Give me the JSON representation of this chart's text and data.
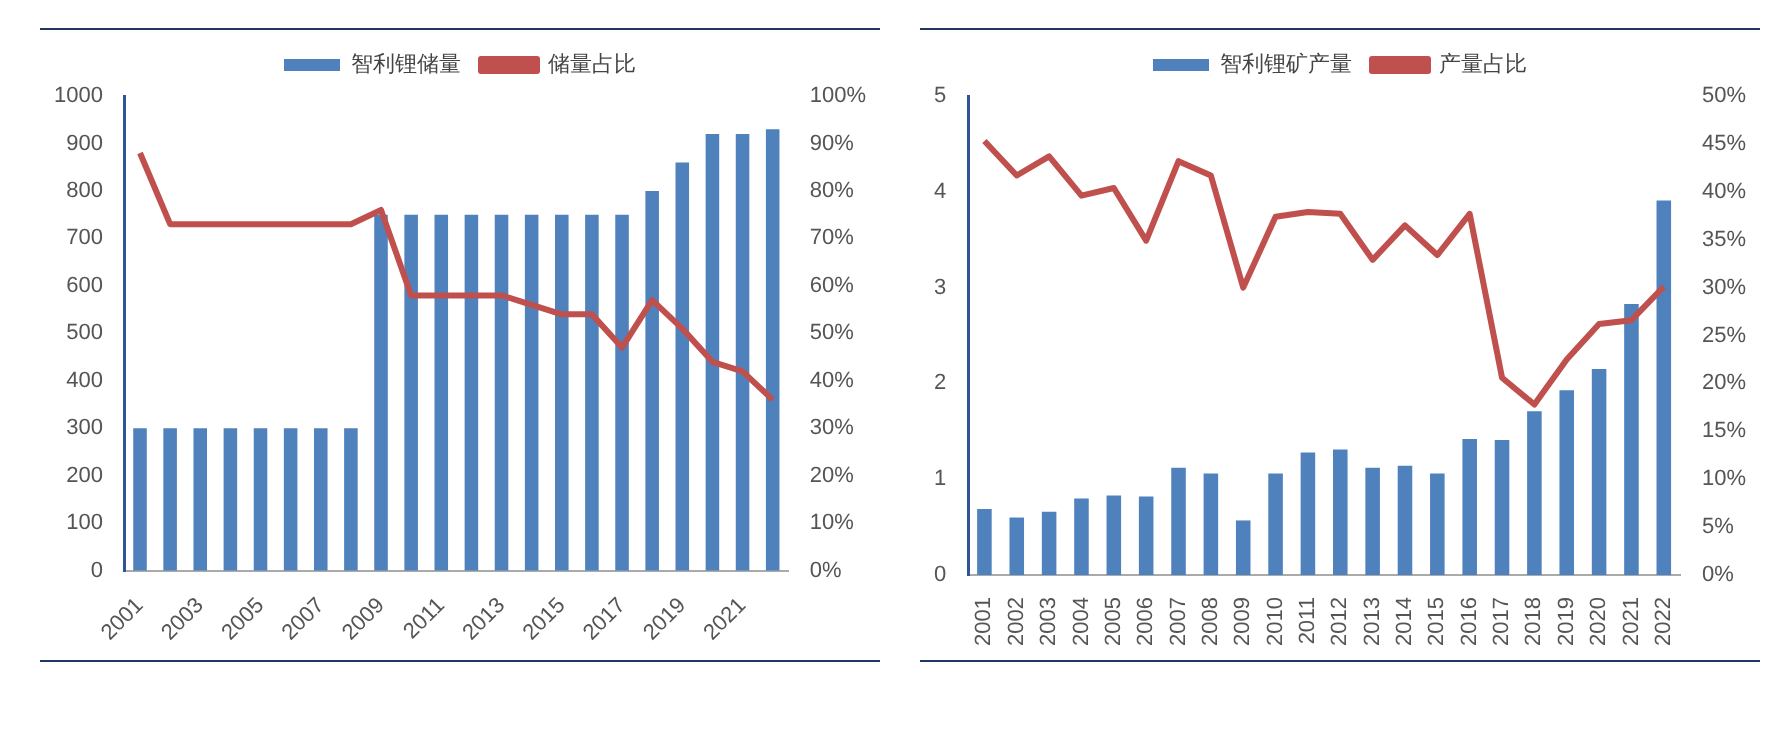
{
  "chart_data": [
    {
      "type": "bar",
      "categories": [
        "2001",
        null,
        "2003",
        null,
        "2005",
        null,
        "2007",
        null,
        "2009",
        null,
        "2011",
        null,
        "2013",
        null,
        "2015",
        null,
        "2017",
        null,
        "2019",
        null,
        "2021",
        null
      ],
      "series": [
        {
          "name": "智利锂储量",
          "color": "#4f81bd",
          "values": [
            300,
            300,
            300,
            300,
            300,
            300,
            300,
            300,
            750,
            750,
            750,
            750,
            750,
            750,
            750,
            750,
            750,
            800,
            860,
            920,
            920,
            930
          ]
        },
        {
          "name": "储量占比",
          "type": "line",
          "axis": "y2",
          "color": "#c0504d",
          "values": [
            88,
            73,
            73,
            73,
            73,
            73,
            73,
            73,
            76,
            58,
            58,
            58,
            58,
            56,
            54,
            54,
            47,
            57,
            51,
            44,
            42,
            36
          ]
        }
      ],
      "ylim": [
        0,
        1000
      ],
      "yticks": [
        0,
        100,
        200,
        300,
        400,
        500,
        600,
        700,
        800,
        900,
        1000
      ],
      "y2lim": [
        0,
        100
      ],
      "y2ticks": [
        {
          "value": 0,
          "label": "0%"
        },
        {
          "value": 10,
          "label": "10%"
        },
        {
          "value": 20,
          "label": "20%"
        },
        {
          "value": 30,
          "label": "30%"
        },
        {
          "value": 40,
          "label": "40%"
        },
        {
          "value": 50,
          "label": "50%"
        },
        {
          "value": 60,
          "label": "60%"
        },
        {
          "value": 70,
          "label": "70%"
        },
        {
          "value": 80,
          "label": "80%"
        },
        {
          "value": 90,
          "label": "90%"
        },
        {
          "value": 100,
          "label": "100%"
        }
      ],
      "legend": "top",
      "grid": false,
      "marker": "none",
      "line_style": "solid"
    },
    {
      "type": "bar",
      "categories": [
        "2001",
        "2002",
        "2003",
        "2004",
        "2005",
        "2006",
        "2007",
        "2008",
        "2009",
        "2010",
        "2011",
        "2012",
        "2013",
        "2014",
        "2015",
        "2016",
        "2017",
        "2018",
        "2019",
        "2020",
        "2021",
        "2022"
      ],
      "series": [
        {
          "name": "智利锂矿产量",
          "color": "#4f81bd",
          "values": [
            0.69,
            0.6,
            0.66,
            0.8,
            0.83,
            0.82,
            1.12,
            1.06,
            0.57,
            1.06,
            1.28,
            1.31,
            1.12,
            1.14,
            1.06,
            1.42,
            1.41,
            1.71,
            1.93,
            2.15,
            2.83,
            3.91
          ]
        },
        {
          "name": "产量占比",
          "type": "line",
          "axis": "y2",
          "color": "#c0504d",
          "values": [
            45.3,
            41.7,
            43.7,
            39.6,
            40.4,
            34.9,
            43.2,
            41.7,
            30,
            37.4,
            37.9,
            37.7,
            32.9,
            36.5,
            33.4,
            37.7,
            20.6,
            17.8,
            22.5,
            26.2,
            26.6,
            30.1
          ]
        }
      ],
      "ylim": [
        0,
        5
      ],
      "yticks": [
        0,
        1,
        2,
        3,
        4,
        5
      ],
      "y2lim": [
        0,
        50
      ],
      "y2ticks": [
        {
          "value": 0,
          "label": "0%"
        },
        {
          "value": 5,
          "label": "5%"
        },
        {
          "value": 10,
          "label": "10%"
        },
        {
          "value": 15,
          "label": "15%"
        },
        {
          "value": 20,
          "label": "20%"
        },
        {
          "value": 25,
          "label": "25%"
        },
        {
          "value": 30,
          "label": "30%"
        },
        {
          "value": 35,
          "label": "35%"
        },
        {
          "value": 40,
          "label": "40%"
        },
        {
          "value": 45,
          "label": "45%"
        },
        {
          "value": 50,
          "label": "50%"
        }
      ],
      "legend": "top",
      "grid": false,
      "marker": "none",
      "line_style": "solid"
    }
  ]
}
